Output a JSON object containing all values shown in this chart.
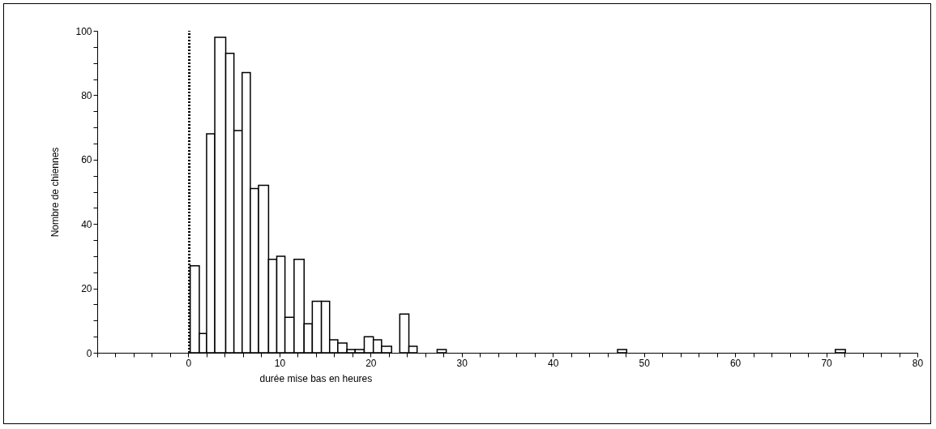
{
  "chart_data": {
    "type": "histogram",
    "xlabel": "durée mise bas en heures",
    "ylabel": "Nombre de chiennes",
    "bins": [
      0.2,
      1.2,
      2.0,
      2.9,
      4.1,
      5.0,
      5.9,
      6.8,
      7.7,
      8.8,
      9.7,
      10.6,
      11.6,
      12.7,
      13.6,
      14.6,
      15.5,
      16.4,
      17.4,
      18.3,
      19.3,
      20.3,
      21.2,
      22.3,
      23.2,
      24.2,
      25.1,
      27.3,
      28.3,
      47.1,
      48.1,
      71.0,
      72.1
    ],
    "values": [
      27,
      6,
      68,
      98,
      93,
      69,
      87,
      51,
      52,
      29,
      30,
      11,
      29,
      9,
      16,
      16,
      4,
      3,
      1,
      1,
      5,
      4,
      2,
      0,
      12,
      2,
      0,
      1,
      0,
      1,
      0,
      1
    ],
    "color": "#ffffff",
    "xlim": [
      -10,
      80
    ],
    "xticks": [
      {
        "value": -10,
        "label": null
      },
      {
        "value": -8,
        "label": null
      },
      {
        "value": -6,
        "label": null
      },
      {
        "value": -4,
        "label": null
      },
      {
        "value": -2,
        "label": null
      },
      0,
      {
        "value": 2,
        "label": null
      },
      {
        "value": 4,
        "label": null
      },
      {
        "value": 6,
        "label": null
      },
      {
        "value": 8,
        "label": null
      },
      10,
      {
        "value": 12,
        "label": null
      },
      {
        "value": 14,
        "label": null
      },
      {
        "value": 16,
        "label": null
      },
      {
        "value": 18,
        "label": null
      },
      20,
      {
        "value": 22,
        "label": null
      },
      {
        "value": 24,
        "label": null
      },
      {
        "value": 26,
        "label": null
      },
      {
        "value": 28,
        "label": null
      },
      30,
      {
        "value": 32,
        "label": null
      },
      {
        "value": 34,
        "label": null
      },
      {
        "value": 36,
        "label": null
      },
      {
        "value": 38,
        "label": null
      },
      40,
      {
        "value": 42,
        "label": null
      },
      {
        "value": 44,
        "label": null
      },
      {
        "value": 46,
        "label": null
      },
      {
        "value": 48,
        "label": null
      },
      50,
      {
        "value": 52,
        "label": null
      },
      {
        "value": 54,
        "label": null
      },
      {
        "value": 56,
        "label": null
      },
      {
        "value": 58,
        "label": null
      },
      60,
      {
        "value": 62,
        "label": null
      },
      {
        "value": 64,
        "label": null
      },
      {
        "value": 66,
        "label": null
      },
      {
        "value": 68,
        "label": null
      },
      70,
      {
        "value": 72,
        "label": null
      },
      {
        "value": 74,
        "label": null
      },
      {
        "value": 76,
        "label": null
      },
      {
        "value": 78,
        "label": null
      },
      80
    ],
    "ylim": [
      0,
      100
    ],
    "yticks": [
      0,
      {
        "value": 5,
        "label": null
      },
      {
        "value": 10,
        "label": null
      },
      {
        "value": 15,
        "label": null
      },
      20,
      {
        "value": 25,
        "label": null
      },
      {
        "value": 30,
        "label": null
      },
      {
        "value": 35,
        "label": null
      },
      40,
      {
        "value": 45,
        "label": null
      },
      {
        "value": 50,
        "label": null
      },
      {
        "value": 55,
        "label": null
      },
      60,
      {
        "value": 65,
        "label": null
      },
      {
        "value": 70,
        "label": null
      },
      {
        "value": 75,
        "label": null
      },
      80,
      {
        "value": 85,
        "label": null
      },
      {
        "value": 90,
        "label": null
      },
      {
        "value": 95,
        "label": null
      },
      100
    ],
    "ref_lines": [
      {
        "axis": "x",
        "value": 0.1,
        "line_style": "dotted",
        "color": "#000000"
      }
    ],
    "grid": false
  }
}
